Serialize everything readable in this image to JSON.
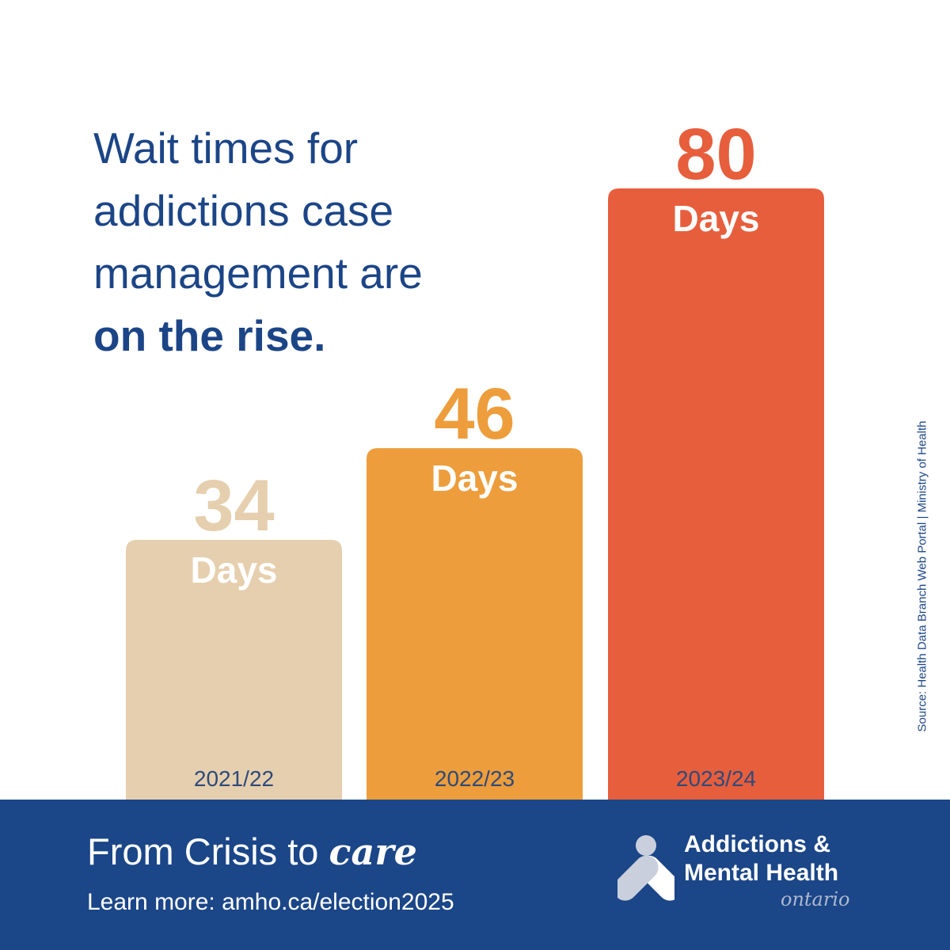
{
  "headline": {
    "line1": "Wait times for",
    "line2": "addictions case",
    "line3": "management are",
    "line4": "on the rise."
  },
  "chart_data": {
    "type": "bar",
    "categories": [
      "2021/22",
      "2022/23",
      "2023/24"
    ],
    "values": [
      34,
      46,
      80
    ],
    "value_unit_label": "Days",
    "bar_colors": [
      "#e6cfae",
      "#ed9d3b",
      "#e75e3d"
    ],
    "value_colors": [
      "#e6cfae",
      "#ed9d3b",
      "#e75e3d"
    ],
    "ylim": [
      0,
      100
    ],
    "grid": false
  },
  "source": "Source: Health Data Branch Web Portal | Ministry of Health",
  "footer": {
    "tagline_prefix": "From Crisis to",
    "tagline_emphasis": "care",
    "learn_more": "Learn more: amho.ca/election2025",
    "background_color": "#1b4688"
  },
  "logo": {
    "line1": "Addictions &",
    "line2": "Mental Health",
    "region": "ontario",
    "icon": "amho-logo-icon"
  },
  "colors": {
    "headline": "#1c4587"
  }
}
